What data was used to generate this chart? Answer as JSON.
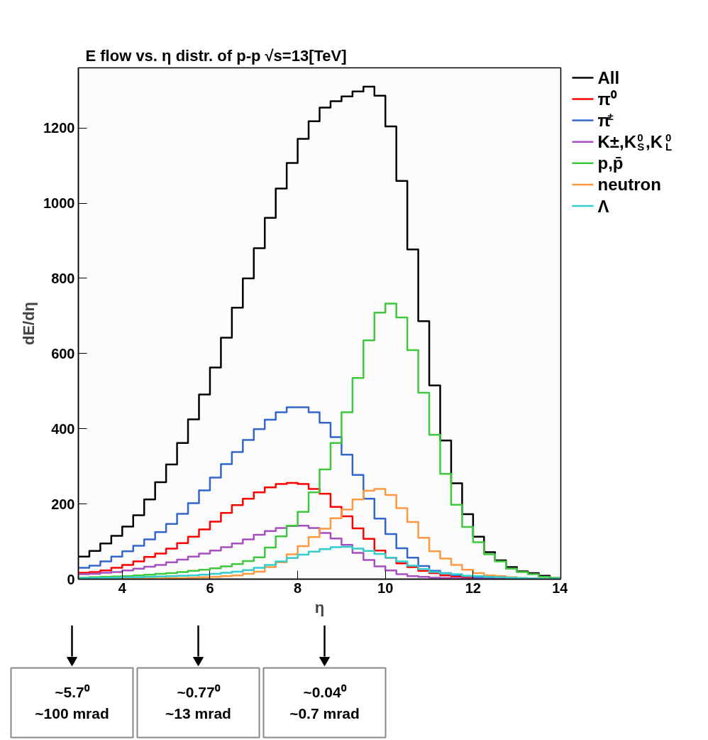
{
  "chart_data": {
    "type": "histogram",
    "title": "E flow vs. η distr. of p-p √s=13[TeV]",
    "xlabel": "η",
    "ylabel": "dE/dη",
    "bins": [
      3,
      3.25,
      3.5,
      3.75,
      4,
      4.25,
      4.5,
      4.75,
      5,
      5.25,
      5.5,
      5.75,
      6,
      6.25,
      6.5,
      6.75,
      7,
      7.25,
      7.5,
      7.75,
      8,
      8.25,
      8.5,
      8.75,
      9,
      9.25,
      9.5,
      9.75,
      10,
      10.25,
      10.5,
      10.75,
      11,
      11.25,
      11.5,
      11.75,
      12,
      12.25,
      12.5,
      12.75,
      13,
      13.25,
      13.5,
      13.75,
      14
    ],
    "xlim": [
      3,
      14
    ],
    "xticks": [
      4,
      6,
      8,
      10,
      12,
      14
    ],
    "ylim": [
      0,
      1360
    ],
    "yticks": [
      0,
      200,
      400,
      600,
      800,
      1000,
      1200
    ],
    "legend": "top right",
    "series": [
      {
        "name": "All",
        "color": "#000000",
        "values": [
          60,
          75,
          95,
          115,
          140,
          170,
          212,
          258,
          305,
          362,
          425,
          491,
          563,
          642,
          722,
          800,
          880,
          961,
          1039,
          1107,
          1171,
          1218,
          1254,
          1271,
          1284,
          1297,
          1310,
          1286,
          1204,
          1059,
          877,
          686,
          515,
          369,
          255,
          173,
          113,
          72,
          50,
          32,
          21,
          16,
          9,
          3
        ]
      },
      {
        "name": "π⁰",
        "color": "#ff0000",
        "values": [
          17,
          19,
          23,
          30,
          38,
          47,
          59,
          68,
          81,
          96,
          113,
          132,
          153,
          176,
          197,
          214,
          231,
          244,
          253,
          256,
          253,
          240,
          227,
          192,
          167,
          135,
          107,
          76,
          57,
          42,
          32,
          22,
          16,
          10,
          7,
          4,
          3,
          2,
          1,
          1,
          0,
          0,
          0,
          0
        ]
      },
      {
        "name": "π$^{±}$",
        "color": "#3366cc",
        "values": [
          30,
          36,
          47,
          60,
          74,
          89,
          106,
          125,
          147,
          174,
          202,
          236,
          270,
          306,
          338,
          370,
          399,
          424,
          444,
          457,
          457,
          444,
          416,
          378,
          331,
          277,
          214,
          161,
          120,
          82,
          57,
          35,
          22,
          16,
          11,
          8,
          5,
          3,
          2,
          1,
          1,
          0,
          0,
          0
        ]
      },
      {
        "name": "K±,K$^{0}$$_{S}$,K$^{0}$$_{L}$",
        "color": "#a64fc0",
        "values": [
          13,
          14,
          17,
          19,
          23,
          28,
          33,
          38,
          45,
          52,
          60,
          68,
          76,
          85,
          95,
          106,
          118,
          128,
          136,
          141,
          142,
          136,
          123,
          108,
          91,
          70,
          51,
          34,
          23,
          13,
          8,
          6,
          4,
          3,
          2,
          1,
          1,
          0,
          0,
          0,
          0,
          0,
          0,
          0
        ]
      },
      {
        "name": "p,p̄",
        "color": "#3ec83e",
        "values": [
          4,
          5,
          6,
          7,
          8,
          10,
          12,
          14,
          16,
          19,
          22,
          25,
          29,
          34,
          40,
          48,
          58,
          84,
          114,
          142,
          179,
          231,
          292,
          362,
          444,
          535,
          635,
          709,
          733,
          696,
          609,
          496,
          384,
          280,
          198,
          139,
          98,
          66,
          47,
          28,
          19,
          13,
          6,
          3
        ]
      },
      {
        "name": "neutron",
        "color": "#ff9940",
        "values": [
          0,
          0,
          0,
          1,
          1,
          1,
          2,
          2,
          3,
          3,
          4,
          5,
          6,
          8,
          10,
          14,
          20,
          32,
          45,
          66,
          88,
          112,
          134,
          162,
          185,
          212,
          235,
          240,
          224,
          189,
          152,
          110,
          74,
          55,
          38,
          25,
          16,
          10,
          8,
          5,
          3,
          2,
          1,
          0
        ]
      },
      {
        "name": "Λ",
        "color": "#33cccc",
        "values": [
          3,
          3,
          4,
          4,
          5,
          5,
          6,
          7,
          8,
          9,
          10,
          12,
          14,
          17,
          20,
          24,
          30,
          38,
          47,
          56,
          65,
          73,
          80,
          85,
          86,
          81,
          75,
          67,
          57,
          47,
          36,
          27,
          19,
          15,
          13,
          9,
          8,
          6,
          5,
          4,
          3,
          2,
          1,
          1
        ]
      }
    ],
    "annotations": [
      "~5.7⁰\n~100 mrad",
      "~0.77⁰\n~13 mrad",
      "~0.04⁰\n~0.7 mrad"
    ]
  }
}
